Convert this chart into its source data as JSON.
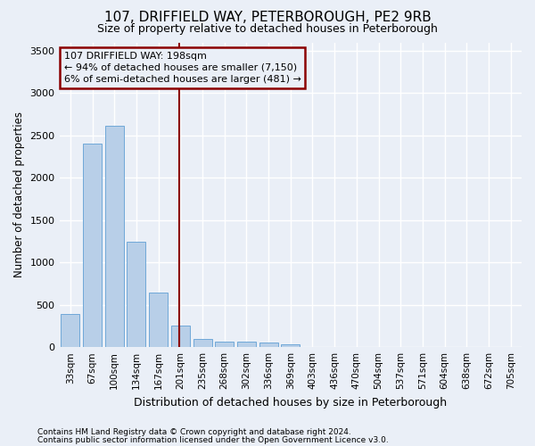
{
  "title": "107, DRIFFIELD WAY, PETERBOROUGH, PE2 9RB",
  "subtitle": "Size of property relative to detached houses in Peterborough",
  "xlabel": "Distribution of detached houses by size in Peterborough",
  "ylabel": "Number of detached properties",
  "footnote1": "Contains HM Land Registry data © Crown copyright and database right 2024.",
  "footnote2": "Contains public sector information licensed under the Open Government Licence v3.0.",
  "bar_labels": [
    "33sqm",
    "67sqm",
    "100sqm",
    "134sqm",
    "167sqm",
    "201sqm",
    "235sqm",
    "268sqm",
    "302sqm",
    "336sqm",
    "369sqm",
    "403sqm",
    "436sqm",
    "470sqm",
    "504sqm",
    "537sqm",
    "571sqm",
    "604sqm",
    "638sqm",
    "672sqm",
    "705sqm"
  ],
  "bar_values": [
    390,
    2400,
    2610,
    1240,
    640,
    260,
    100,
    60,
    60,
    50,
    30,
    0,
    0,
    0,
    0,
    0,
    0,
    0,
    0,
    0,
    0
  ],
  "bar_color": "#b8cfe8",
  "bar_edge_color": "#6fa8d8",
  "annotation_text_line1": "107 DRIFFIELD WAY: 198sqm",
  "annotation_text_line2": "← 94% of detached houses are smaller (7,150)",
  "annotation_text_line3": "6% of semi-detached houses are larger (481) →",
  "vline_color": "#8b0000",
  "ylim": [
    0,
    3600
  ],
  "yticks": [
    0,
    500,
    1000,
    1500,
    2000,
    2500,
    3000,
    3500
  ],
  "bg_color": "#eaeff7",
  "plot_bg_color": "#eaeff7",
  "grid_color": "#ffffff"
}
